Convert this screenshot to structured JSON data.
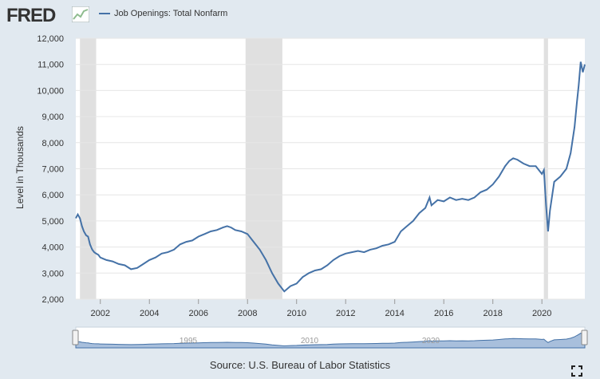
{
  "logo": "FRED",
  "legend_label": "Job Openings: Total Nonfarm",
  "source": "Source: U.S. Bureau of Labor Statistics",
  "navigator_labels": [
    "1995",
    "2010",
    "2020"
  ],
  "colors": {
    "line": "#4572a7",
    "recession": "#e0e0e0",
    "background": "#e1e9f0",
    "plot_bg": "#ffffff"
  },
  "chart_data": {
    "type": "line",
    "title": "",
    "xlabel": "",
    "ylabel": "Level in Thousands",
    "xlim": [
      2001.0,
      2021.75
    ],
    "ylim": [
      2000,
      12000
    ],
    "yticks": [
      2000,
      3000,
      4000,
      5000,
      6000,
      7000,
      8000,
      9000,
      10000,
      11000,
      12000
    ],
    "yticklabels": [
      "2,000",
      "3,000",
      "4,000",
      "5,000",
      "6,000",
      "7,000",
      "8,000",
      "9,000",
      "10,000",
      "11,000",
      "12,000"
    ],
    "xticks": [
      2002,
      2004,
      2006,
      2008,
      2010,
      2012,
      2014,
      2016,
      2018,
      2020
    ],
    "xticklabels": [
      "2002",
      "2004",
      "2006",
      "2008",
      "2010",
      "2012",
      "2014",
      "2016",
      "2018",
      "2020"
    ],
    "grid": true,
    "recessions": [
      [
        2001.17,
        2001.83
      ],
      [
        2007.92,
        2009.42
      ],
      [
        2020.08,
        2020.25
      ]
    ],
    "series": [
      {
        "name": "Job Openings: Total Nonfarm",
        "x": [
          2001.0,
          2001.08,
          2001.17,
          2001.25,
          2001.33,
          2001.42,
          2001.5,
          2001.58,
          2001.67,
          2001.75,
          2001.83,
          2001.92,
          2002.0,
          2002.25,
          2002.5,
          2002.75,
          2003.0,
          2003.25,
          2003.5,
          2003.75,
          2004.0,
          2004.25,
          2004.5,
          2004.75,
          2005.0,
          2005.25,
          2005.5,
          2005.75,
          2006.0,
          2006.25,
          2006.5,
          2006.75,
          2007.0,
          2007.17,
          2007.33,
          2007.5,
          2007.75,
          2008.0,
          2008.25,
          2008.5,
          2008.75,
          2009.0,
          2009.25,
          2009.5,
          2009.75,
          2010.0,
          2010.25,
          2010.5,
          2010.75,
          2011.0,
          2011.25,
          2011.5,
          2011.75,
          2012.0,
          2012.25,
          2012.5,
          2012.75,
          2013.0,
          2013.25,
          2013.5,
          2013.75,
          2014.0,
          2014.25,
          2014.5,
          2014.75,
          2015.0,
          2015.25,
          2015.42,
          2015.5,
          2015.75,
          2016.0,
          2016.25,
          2016.5,
          2016.75,
          2017.0,
          2017.25,
          2017.5,
          2017.75,
          2018.0,
          2018.25,
          2018.5,
          2018.67,
          2018.83,
          2019.0,
          2019.25,
          2019.5,
          2019.75,
          2020.0,
          2020.08,
          2020.17,
          2020.25,
          2020.33,
          2020.5,
          2020.75,
          2021.0,
          2021.17,
          2021.33,
          2021.42,
          2021.5,
          2021.58,
          2021.67,
          2021.75
        ],
        "values": [
          5100,
          5250,
          5100,
          4800,
          4600,
          4450,
          4400,
          4100,
          3900,
          3800,
          3750,
          3700,
          3600,
          3500,
          3450,
          3350,
          3300,
          3150,
          3200,
          3350,
          3500,
          3600,
          3750,
          3800,
          3900,
          4100,
          4200,
          4250,
          4400,
          4500,
          4600,
          4650,
          4750,
          4800,
          4750,
          4650,
          4600,
          4500,
          4200,
          3900,
          3500,
          3000,
          2600,
          2300,
          2500,
          2600,
          2850,
          3000,
          3100,
          3150,
          3300,
          3500,
          3650,
          3750,
          3800,
          3850,
          3800,
          3900,
          3950,
          4050,
          4100,
          4200,
          4600,
          4800,
          5000,
          5300,
          5500,
          5900,
          5600,
          5800,
          5750,
          5900,
          5800,
          5850,
          5800,
          5900,
          6100,
          6200,
          6400,
          6700,
          7100,
          7300,
          7400,
          7350,
          7200,
          7100,
          7100,
          6800,
          6950,
          5600,
          4600,
          5400,
          6500,
          6700,
          7000,
          7600,
          8600,
          9500,
          10200,
          11100,
          10700,
          11000
        ]
      }
    ]
  }
}
